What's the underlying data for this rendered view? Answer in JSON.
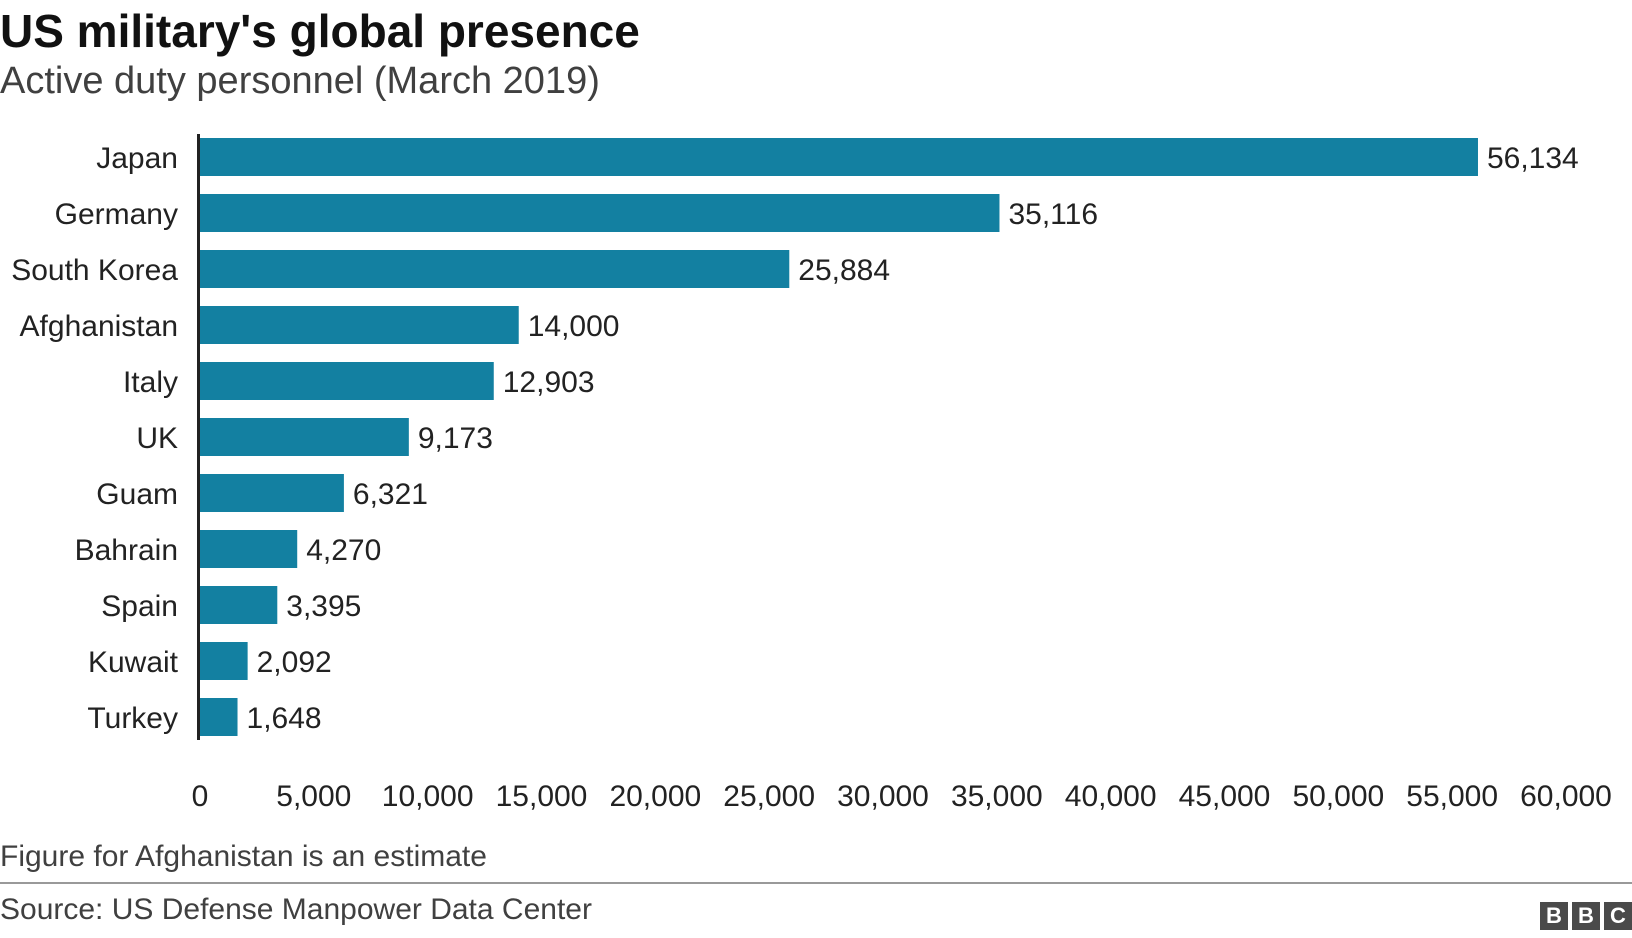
{
  "header": {
    "title": "US military's global presence",
    "subtitle": "Active duty personnel (March 2019)"
  },
  "footer": {
    "note": "Figure for Afghanistan is an estimate",
    "source": "Source: US Defense Manpower Data Center",
    "logo_letters": [
      "B",
      "B",
      "C"
    ]
  },
  "colors": {
    "bar": "#1380A1",
    "axis": "#222222",
    "text": "#222222"
  },
  "chart_data": {
    "type": "bar",
    "orientation": "horizontal",
    "title": "US military's global presence",
    "subtitle": "Active duty personnel (March 2019)",
    "categories": [
      "Japan",
      "Germany",
      "South Korea",
      "Afghanistan",
      "Italy",
      "UK",
      "Guam",
      "Bahrain",
      "Spain",
      "Kuwait",
      "Turkey"
    ],
    "values": [
      56134,
      35116,
      25884,
      14000,
      12903,
      9173,
      6321,
      4270,
      3395,
      2092,
      1648
    ],
    "value_labels": [
      "56,134",
      "35,116",
      "25,884",
      "14,000",
      "12,903",
      "9,173",
      "6,321",
      "4,270",
      "3,395",
      "2,092",
      "1,648"
    ],
    "xlim": [
      0,
      60000
    ],
    "xticks": [
      0,
      5000,
      10000,
      15000,
      20000,
      25000,
      30000,
      35000,
      40000,
      45000,
      50000,
      55000,
      60000
    ],
    "xtick_labels": [
      "0",
      "5,000",
      "10,000",
      "15,000",
      "20,000",
      "25,000",
      "30,000",
      "35,000",
      "40,000",
      "45,000",
      "50,000",
      "55,000",
      "60,000"
    ],
    "xlabel": "",
    "ylabel": "",
    "grid": false,
    "legend": "none"
  }
}
